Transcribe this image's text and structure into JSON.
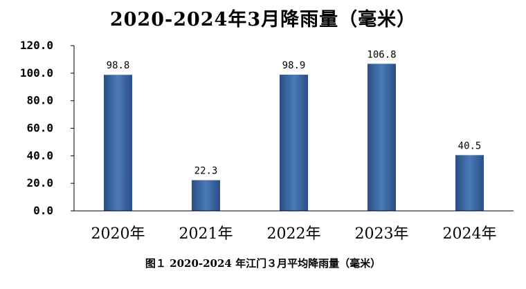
{
  "chart_data": {
    "type": "bar",
    "title": "2020-2024年3月降雨量（毫米）",
    "categories": [
      "2020年",
      "2021年",
      "2022年",
      "2023年",
      "2024年"
    ],
    "values": [
      98.8,
      22.3,
      98.9,
      106.8,
      40.5
    ],
    "data_labels": [
      "98.8",
      "22.3",
      "98.9",
      "106.8",
      "40.5"
    ],
    "y_ticks": [
      "0.0",
      "20.0",
      "40.0",
      "60.0",
      "80.0",
      "100.0",
      "120.0"
    ],
    "ylim": [
      0,
      120
    ],
    "xlabel": "",
    "ylabel": "",
    "grid": false,
    "legend": "none",
    "colors": {
      "bar_edge": "#2b4f86",
      "bar_center": "#4a7ab8",
      "axis": "#000000"
    }
  },
  "caption": "图１ 2020-2024 年江门３月平均降雨量（毫米）"
}
